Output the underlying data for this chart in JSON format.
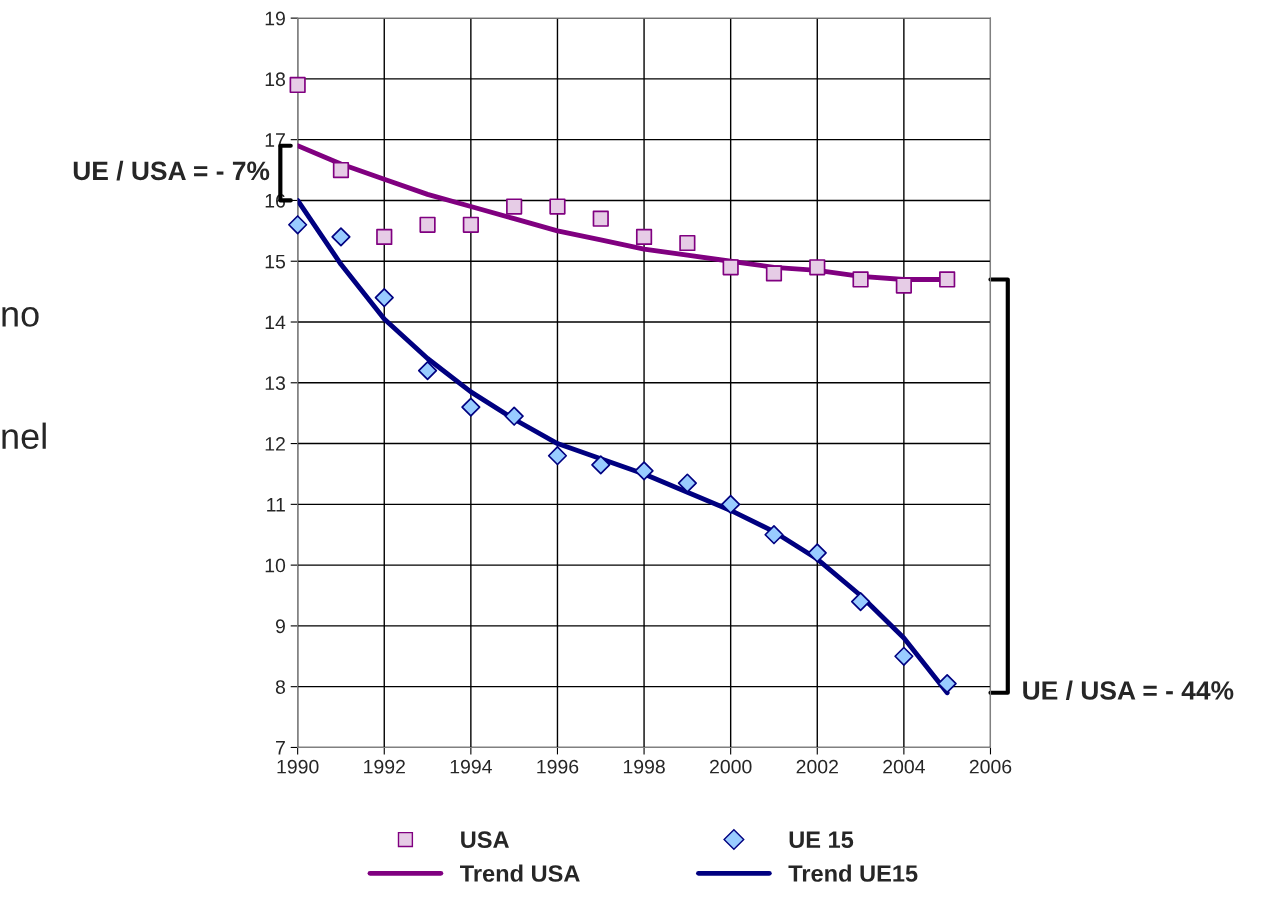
{
  "chart_data": {
    "type": "scatter",
    "series": [
      {
        "name": "USA",
        "marker": "square",
        "color": "#800080",
        "x": [
          1990,
          1991,
          1992,
          1993,
          1994,
          1995,
          1996,
          1997,
          1998,
          1999,
          2000,
          2001,
          2002,
          2003,
          2004,
          2005
        ],
        "values": [
          17.9,
          16.5,
          15.4,
          15.6,
          15.6,
          15.9,
          15.9,
          15.7,
          15.4,
          15.3,
          14.9,
          14.8,
          14.9,
          14.7,
          14.6,
          14.7
        ]
      },
      {
        "name": "UE 15",
        "marker": "diamond",
        "color": "#000080",
        "x": [
          1990,
          1991,
          1992,
          1993,
          1994,
          1995,
          1996,
          1997,
          1998,
          1999,
          2000,
          2001,
          2002,
          2003,
          2004,
          2005
        ],
        "values": [
          15.6,
          15.4,
          14.4,
          13.2,
          12.6,
          12.45,
          11.8,
          11.65,
          11.55,
          11.35,
          11.0,
          10.5,
          10.2,
          9.4,
          8.5,
          8.05
        ]
      },
      {
        "name": "Trend USA",
        "type": "line",
        "marker": "none",
        "line_style": "solid",
        "color": "#800080",
        "x": [
          1990,
          1991,
          1992,
          1993,
          1994,
          1995,
          1996,
          1997,
          1998,
          1999,
          2000,
          2001,
          2002,
          2003,
          2004,
          2005
        ],
        "values": [
          16.9,
          16.6,
          16.35,
          16.1,
          15.9,
          15.7,
          15.5,
          15.35,
          15.2,
          15.1,
          15.0,
          14.9,
          14.85,
          14.75,
          14.7,
          14.7
        ]
      },
      {
        "name": "Trend UE15",
        "type": "line",
        "marker": "none",
        "line_style": "solid",
        "color": "#000080",
        "x": [
          1990,
          1991,
          1992,
          1993,
          1994,
          1995,
          1996,
          1997,
          1998,
          1999,
          2000,
          2001,
          2002,
          2003,
          2004,
          2005
        ],
        "values": [
          16.0,
          14.95,
          14.05,
          13.4,
          12.85,
          12.4,
          12.0,
          11.75,
          11.5,
          11.2,
          10.9,
          10.55,
          10.1,
          9.5,
          8.8,
          7.9
        ]
      }
    ],
    "xlim": [
      1990,
      2006
    ],
    "xticks": [
      1990,
      1992,
      1994,
      1996,
      1998,
      2000,
      2002,
      2004,
      2006
    ],
    "ylim": [
      7,
      19
    ],
    "yticks": [
      7,
      8,
      9,
      10,
      11,
      12,
      13,
      14,
      15,
      16,
      17,
      18,
      19
    ],
    "grid": true,
    "legend": "bottom",
    "annotations": [
      "UE / USA = - 7%",
      "UE / USA = - 44%",
      "no",
      "nel"
    ]
  }
}
